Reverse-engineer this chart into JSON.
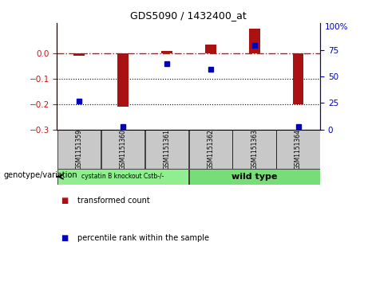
{
  "title": "GDS5090 / 1432400_at",
  "samples": [
    "GSM1151359",
    "GSM1151360",
    "GSM1151361",
    "GSM1151362",
    "GSM1151363",
    "GSM1151364"
  ],
  "red_values": [
    -0.01,
    -0.21,
    0.01,
    0.035,
    0.098,
    -0.2
  ],
  "blue_percentile": [
    27,
    3,
    62,
    57,
    79,
    3
  ],
  "ylim_left": [
    -0.3,
    0.12
  ],
  "ylim_right": [
    0,
    100
  ],
  "yticks_left": [
    0.0,
    -0.1,
    -0.2,
    -0.3
  ],
  "yticks_right": [
    75,
    50,
    25,
    0
  ],
  "group1_label": "cystatin B knockout Cstb-/-",
  "group2_label": "wild type",
  "group1_color": "#90EE90",
  "group2_color": "#77DD77",
  "group1_indices": [
    0,
    1,
    2
  ],
  "group2_indices": [
    3,
    4,
    5
  ],
  "bar_color": "#AA1111",
  "dot_color": "#0000BB",
  "legend_red": "transformed count",
  "legend_blue": "percentile rank within the sample",
  "hline_color": "#CC1111",
  "annotation_left": "genotype/variation"
}
